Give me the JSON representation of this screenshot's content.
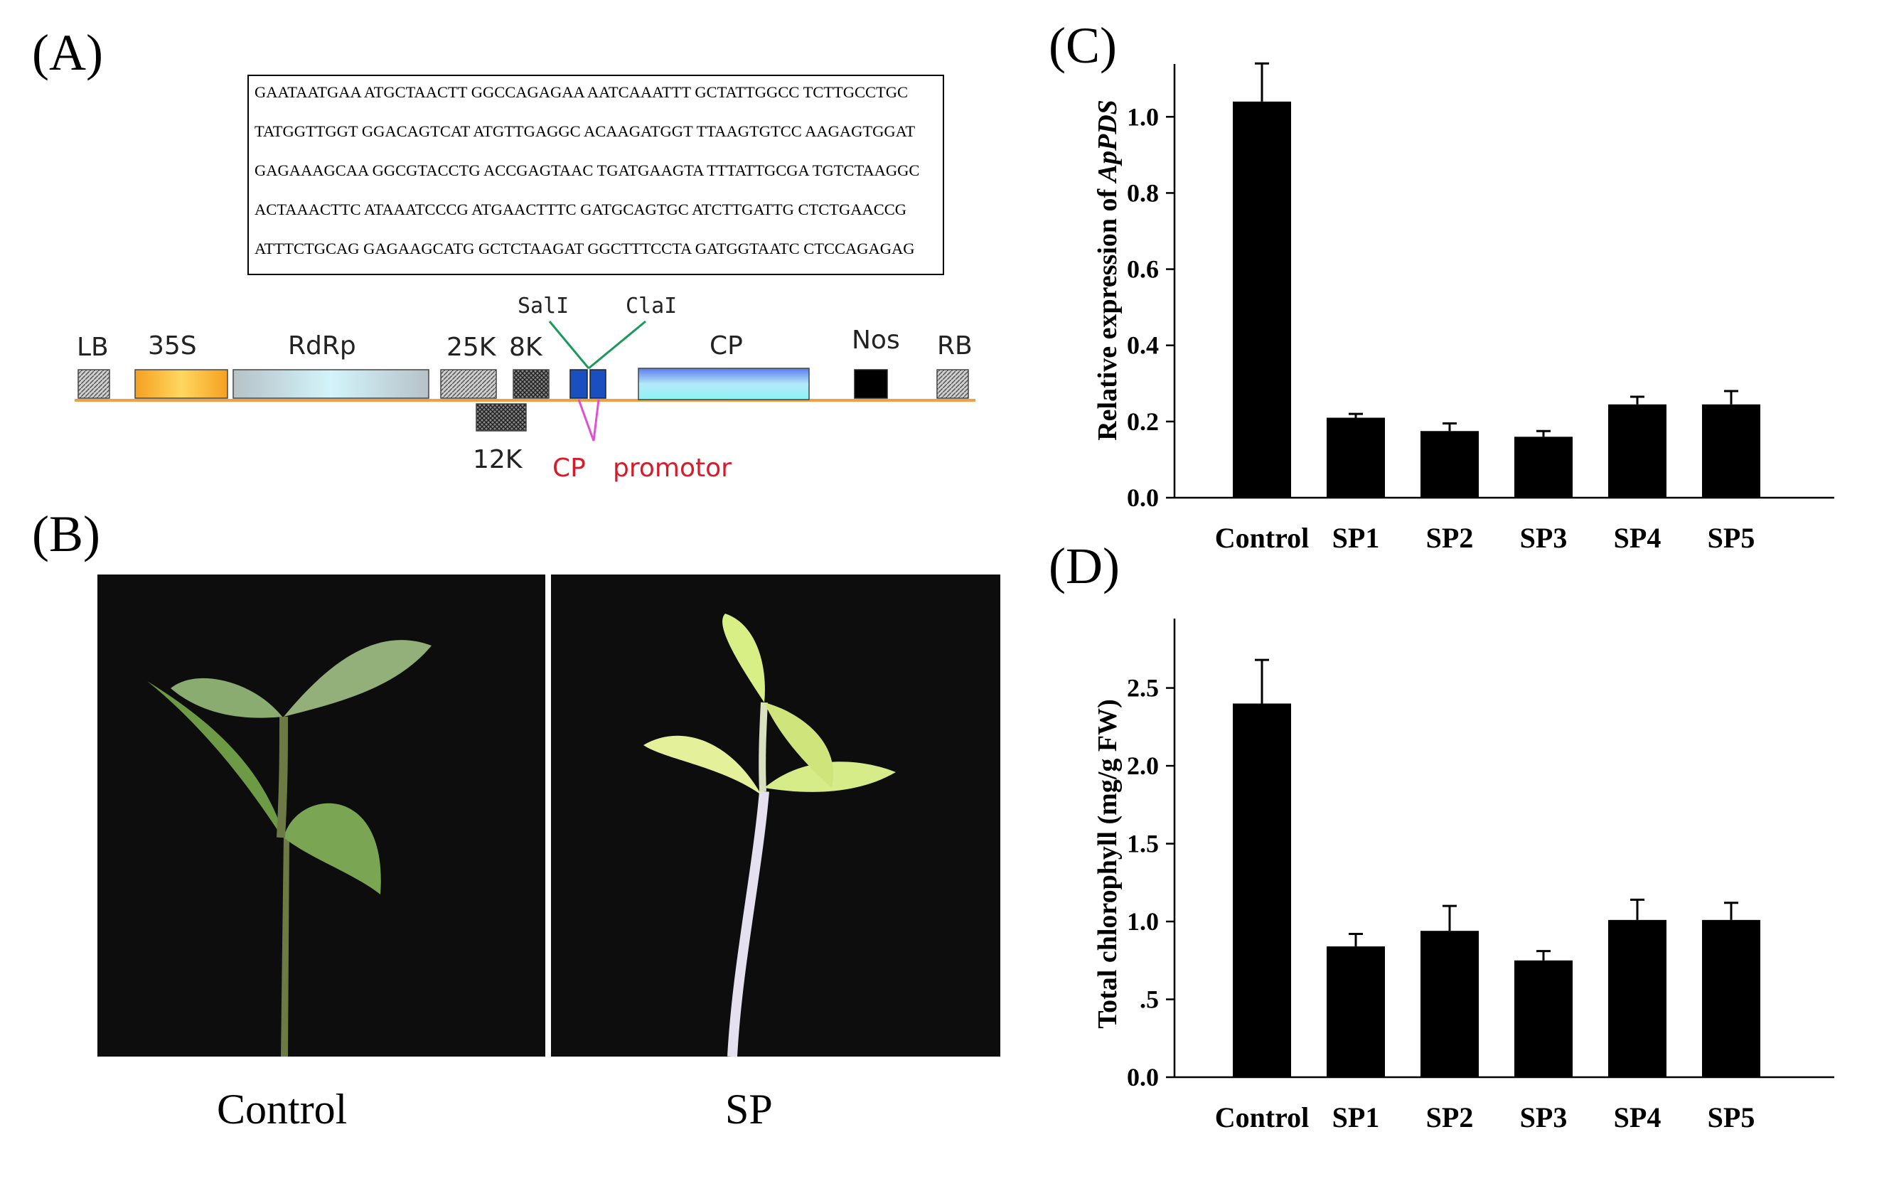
{
  "panels": {
    "a": "(A)",
    "b": "(B)",
    "c": "(C)",
    "d": "(D)"
  },
  "sequence_lines": [
    "GAATAATGAA ATGCTAACTT GGCCAGAGAA AATCAAATTT GCTATTGGCC TCTTGCCTGC",
    "TATGGTTGGT GGACAGTCAT ATGTTGAGGC ACAAGATGGT TTAAGTGTCC AAGAGTGGAT",
    "GAGAAAGCAA GGCGTACCTG ACCGAGTAAC TGATGAAGTA TTTATTGCGA TGTCTAAGGC",
    "ACTAAACTTC ATAAATCCCG ATGAACTTTC GATGCAGTGC ATCTTGATTG CTCTGAACCG",
    "ATTTCTGCAG GAGAAGCATG GCTCTAAGAT GGCTTTCCTA GATGGTAATC CTCCAGAGAG"
  ],
  "vector_map": {
    "elements": [
      "LB",
      "35S",
      "RdRp",
      "25K",
      "8K",
      "CP",
      "Nos",
      "RB"
    ],
    "below": "12K",
    "sites": [
      "SalI",
      "ClaI"
    ],
    "promoter_cp": "CP",
    "promoter_word": "promotor",
    "colors": {
      "backbone": "#f0a040",
      "s35": "#f5a623",
      "rdrp": "#b8d4dc",
      "cp": "#7ab0f0",
      "nos": "#000000",
      "insert": "#1a4fc0",
      "site_line": "#1a9a5a",
      "promoter": "#e050d0",
      "promoter_text": "#d81b2a"
    }
  },
  "photos": {
    "left_caption": "Control",
    "right_caption": "SP"
  },
  "chart_data": [
    {
      "panel": "(C)",
      "type": "bar",
      "categories": [
        "Control",
        "SP1",
        "SP2",
        "SP3",
        "SP4",
        "SP5"
      ],
      "values": [
        1.04,
        0.21,
        0.175,
        0.16,
        0.245,
        0.245
      ],
      "errors": [
        0.1,
        0.01,
        0.02,
        0.015,
        0.02,
        0.035
      ],
      "ylabel_prefix": "Relative expression of ",
      "ylabel_italic": "ApPDS",
      "ylim": [
        0,
        1.12
      ],
      "yticks": [
        0.0,
        0.2,
        0.4,
        0.6,
        0.8,
        1.0
      ],
      "ytick_labels": [
        "0.0",
        "0.2",
        "0.4",
        "0.6",
        "0.8",
        "1.0"
      ],
      "bar_color": "#000000",
      "grid": false
    },
    {
      "panel": "(D)",
      "type": "bar",
      "categories": [
        "Control",
        "SP1",
        "SP2",
        "SP3",
        "SP4",
        "SP5"
      ],
      "values": [
        2.4,
        0.84,
        0.94,
        0.75,
        1.01,
        1.01
      ],
      "errors": [
        0.28,
        0.08,
        0.16,
        0.06,
        0.13,
        0.11
      ],
      "ylabel": "Total chlorophyll (mg/g FW)",
      "ylim": [
        0,
        2.9
      ],
      "yticks": [
        0.0,
        0.5,
        1.0,
        1.5,
        2.0,
        2.5
      ],
      "ytick_labels": [
        "0.0",
        ".5",
        "1.0",
        "1.5",
        "2.0",
        "2.5"
      ],
      "bar_color": "#000000",
      "grid": false
    }
  ]
}
